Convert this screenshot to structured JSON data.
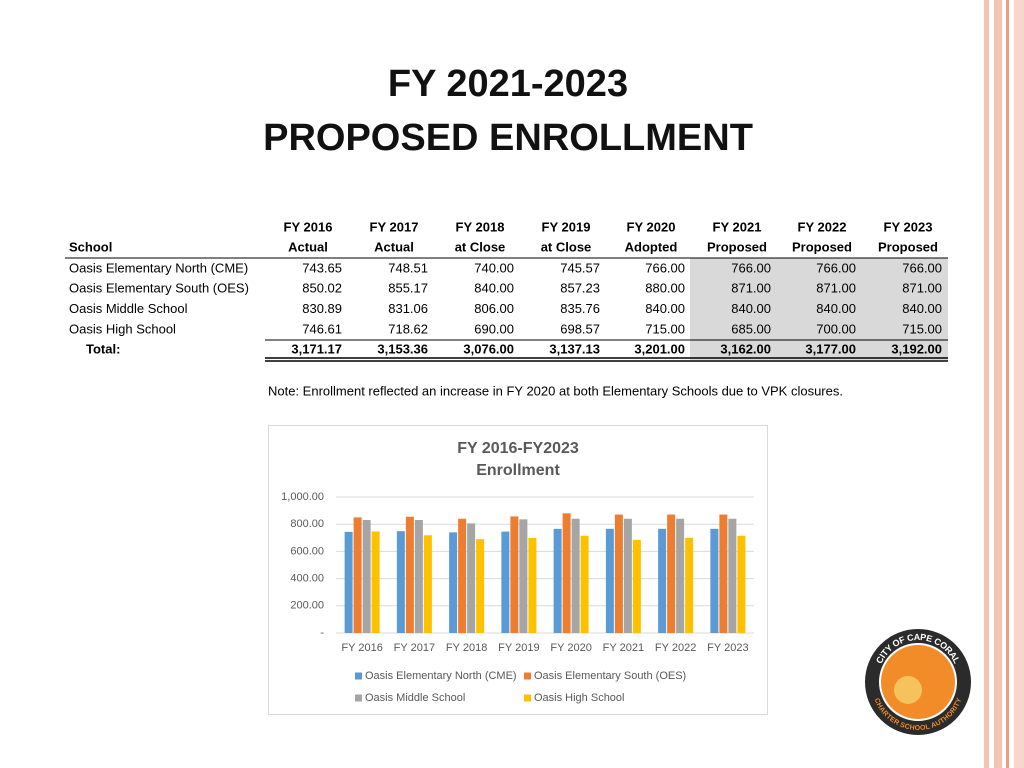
{
  "slide": {
    "title": [
      "FY 2021-2023",
      "PROPOSED ENROLLMENT"
    ],
    "note": "Note:  Enrollment reflected an increase in FY 2020 at both Elementary Schools due to VPK closures.",
    "logo": {
      "top": "CITY OF CAPE CORAL",
      "bottom": "CHARTER SCHOOL AUTHORITY"
    }
  },
  "table": {
    "header_top": [
      "FY 2016",
      "FY 2017",
      "FY 2018",
      "FY 2019",
      "FY 2020",
      "FY 2021",
      "FY 2022",
      "FY 2023"
    ],
    "header_bottom": [
      "School",
      "Actual",
      "Actual",
      "at Close",
      "at Close",
      "Adopted",
      "Proposed",
      "Proposed",
      "Proposed"
    ],
    "rows": [
      [
        "Oasis Elementary North (CME)",
        "743.65",
        "748.51",
        "740.00",
        "745.57",
        "766.00",
        "766.00",
        "766.00",
        "766.00"
      ],
      [
        "Oasis Elementary South (OES)",
        "850.02",
        "855.17",
        "840.00",
        "857.23",
        "880.00",
        "871.00",
        "871.00",
        "871.00"
      ],
      [
        "Oasis Middle School",
        "830.89",
        "831.06",
        "806.00",
        "835.76",
        "840.00",
        "840.00",
        "840.00",
        "840.00"
      ],
      [
        "Oasis High School",
        "746.61",
        "718.62",
        "690.00",
        "698.57",
        "715.00",
        "685.00",
        "700.00",
        "715.00"
      ]
    ],
    "total": [
      "Total:",
      "3,171.17",
      "3,153.36",
      "3,076.00",
      "3,137.13",
      "3,201.00",
      "3,162.00",
      "3,177.00",
      "3,192.00"
    ]
  },
  "chart_data": {
    "type": "bar",
    "title": [
      "FY 2016-FY2023",
      "Enrollment"
    ],
    "categories": [
      "FY 2016",
      "FY 2017",
      "FY 2018",
      "FY 2019",
      "FY 2020",
      "FY 2021",
      "FY 2022",
      "FY 2023"
    ],
    "series": [
      {
        "name": "Oasis Elementary North (CME)",
        "color": "#5b9bd5",
        "values": [
          743.65,
          748.51,
          740,
          745.57,
          766,
          766,
          766,
          766
        ]
      },
      {
        "name": "Oasis Elementary South (OES)",
        "color": "#ed7d31",
        "values": [
          850.02,
          855.17,
          840,
          857.23,
          880,
          871,
          871,
          871
        ]
      },
      {
        "name": "Oasis Middle School",
        "color": "#a5a5a5",
        "values": [
          830.89,
          831.06,
          806,
          835.76,
          840,
          840,
          840,
          840
        ]
      },
      {
        "name": "Oasis High School",
        "color": "#ffc000",
        "values": [
          746.61,
          718.62,
          690,
          698.57,
          715,
          685,
          700,
          715
        ]
      }
    ],
    "ylim": [
      0,
      1000
    ],
    "yticks": [
      {
        "value": 0,
        "label": "-"
      },
      {
        "value": 200,
        "label": "200.00"
      },
      {
        "value": 400,
        "label": "400.00"
      },
      {
        "value": 600,
        "label": "600.00"
      },
      {
        "value": 800,
        "label": "800.00"
      },
      {
        "value": 1000,
        "label": "1,000.00"
      }
    ],
    "grid": true,
    "legend": "bottom"
  }
}
